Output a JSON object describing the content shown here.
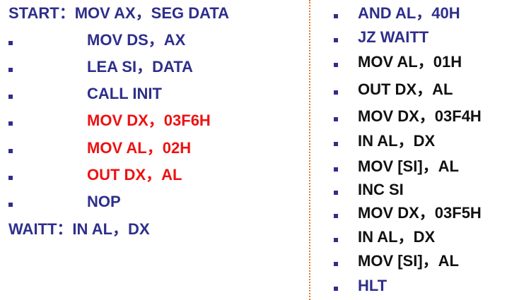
{
  "colors": {
    "code": "#2e2e8c",
    "black": "#111111",
    "red": "#ee1111",
    "bullet": "#2e2e8c",
    "divider": "#e07a2e"
  },
  "left_column": [
    {
      "text": "START：MOV AX，SEG DATA",
      "color": "code",
      "bullet": false
    },
    {
      "text": "MOV DS，AX",
      "color": "code",
      "bullet": true
    },
    {
      "text": "LEA  SI，DATA",
      "color": "code",
      "bullet": true
    },
    {
      "text": "CALL INIT",
      "color": "code",
      "bullet": true
    },
    {
      "text": "MOV DX，03F6H",
      "color": "red",
      "bullet": true
    },
    {
      "text": "MOV AL，02H",
      "color": "red",
      "bullet": true
    },
    {
      "text": "OUT DX，AL",
      "color": "red",
      "bullet": true
    },
    {
      "text": "NOP",
      "color": "code",
      "bullet": true
    },
    {
      "text": "WAITT：IN AL，DX",
      "color": "code",
      "bullet": false
    }
  ],
  "right_column": [
    {
      "text": "AND AL，40H",
      "color": "code",
      "bullet": true
    },
    {
      "text": "JZ  WAITT",
      "color": "code",
      "bullet": true
    },
    {
      "text": "MOV AL，01H",
      "color": "black",
      "bullet": true
    },
    {
      "text": "OUT DX，AL",
      "color": "black",
      "bullet": true
    },
    {
      "text": "MOV DX，03F4H",
      "color": "black",
      "bullet": true
    },
    {
      "text": "IN AL，DX",
      "color": "black",
      "bullet": true
    },
    {
      "text": "MOV [SI]，AL",
      "color": "black",
      "bullet": true
    },
    {
      "text": "INC SI",
      "color": "black",
      "bullet": true
    },
    {
      "text": "MOV DX，03F5H",
      "color": "black",
      "bullet": true
    },
    {
      "text": "IN AL，DX",
      "color": "black",
      "bullet": true
    },
    {
      "text": "MOV [SI]，AL",
      "color": "black",
      "bullet": true
    },
    {
      "text": "HLT",
      "color": "code",
      "bullet": true
    }
  ]
}
